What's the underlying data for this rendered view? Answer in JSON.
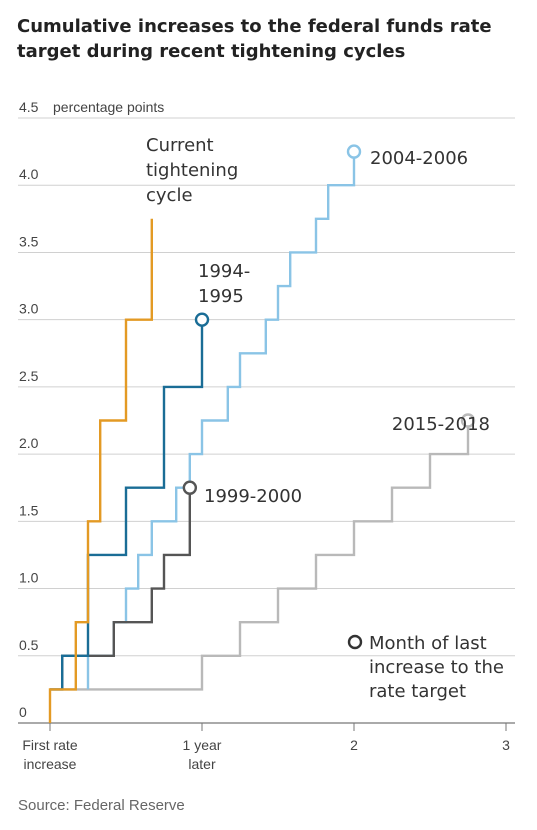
{
  "chart_data": {
    "type": "line",
    "step": true,
    "title": "Cumulative increases to the federal funds rate target during recent tightening cycles",
    "source": "Source: Federal Reserve",
    "y_unit_label": "percentage points",
    "ylim": [
      0,
      4.5
    ],
    "y_ticks": [
      "0",
      "0.5",
      "1.0",
      "1.5",
      "2.0",
      "2.5",
      "3.0",
      "3.5",
      "4.0",
      "4.5"
    ],
    "xlim": [
      0,
      3
    ],
    "x_ticks": [
      {
        "value": 0,
        "lines": [
          "First rate",
          "increase"
        ]
      },
      {
        "value": 1,
        "lines": [
          "1 year",
          "later"
        ]
      },
      {
        "value": 2,
        "lines": [
          "2"
        ]
      },
      {
        "value": 3,
        "lines": [
          "3"
        ]
      }
    ],
    "grid": true,
    "legend_text": [
      "Month of last",
      "increase to the",
      "rate target"
    ],
    "series": [
      {
        "name": "Current tightening cycle",
        "label_lines": [
          "Current",
          "tightening",
          "cycle"
        ],
        "color": "#e39a24",
        "end_marker": false,
        "points": [
          [
            0,
            0
          ],
          [
            0,
            0.25
          ],
          [
            0.17,
            0.25
          ],
          [
            0.17,
            0.75
          ],
          [
            0.25,
            0.75
          ],
          [
            0.25,
            1.5
          ],
          [
            0.33,
            1.5
          ],
          [
            0.33,
            2.25
          ],
          [
            0.5,
            2.25
          ],
          [
            0.5,
            3.0
          ],
          [
            0.67,
            3.0
          ],
          [
            0.67,
            3.75
          ]
        ]
      },
      {
        "name": "1994-1995",
        "label_lines": [
          "1994-",
          "1995"
        ],
        "color": "#1a6d96",
        "end_marker": true,
        "points": [
          [
            0,
            0.25
          ],
          [
            0.08,
            0.25
          ],
          [
            0.08,
            0.5
          ],
          [
            0.25,
            0.5
          ],
          [
            0.25,
            1.25
          ],
          [
            0.5,
            1.25
          ],
          [
            0.5,
            1.75
          ],
          [
            0.75,
            1.75
          ],
          [
            0.75,
            2.5
          ],
          [
            1.0,
            2.5
          ],
          [
            1.0,
            3.0
          ]
        ]
      },
      {
        "name": "2004-2006",
        "label_lines": [
          "2004-2006"
        ],
        "color": "#8ac4e6",
        "end_marker": true,
        "points": [
          [
            0.25,
            0.25
          ],
          [
            0.25,
            0.5
          ],
          [
            0.42,
            0.5
          ],
          [
            0.42,
            0.75
          ],
          [
            0.5,
            0.75
          ],
          [
            0.5,
            1.0
          ],
          [
            0.58,
            1.0
          ],
          [
            0.58,
            1.25
          ],
          [
            0.67,
            1.25
          ],
          [
            0.67,
            1.5
          ],
          [
            0.83,
            1.5
          ],
          [
            0.83,
            1.75
          ],
          [
            0.92,
            1.75
          ],
          [
            0.92,
            2.0
          ],
          [
            1.0,
            2.0
          ],
          [
            1.0,
            2.25
          ],
          [
            1.17,
            2.25
          ],
          [
            1.17,
            2.5
          ],
          [
            1.25,
            2.5
          ],
          [
            1.25,
            2.75
          ],
          [
            1.42,
            2.75
          ],
          [
            1.42,
            3.0
          ],
          [
            1.5,
            3.0
          ],
          [
            1.5,
            3.25
          ],
          [
            1.58,
            3.25
          ],
          [
            1.58,
            3.5
          ],
          [
            1.75,
            3.5
          ],
          [
            1.75,
            3.75
          ],
          [
            1.83,
            3.75
          ],
          [
            1.83,
            4.0
          ],
          [
            2.0,
            4.0
          ],
          [
            2.0,
            4.25
          ]
        ]
      },
      {
        "name": "1999-2000",
        "label_lines": [
          "1999-2000"
        ],
        "color": "#555555",
        "end_marker": true,
        "points": [
          [
            0.08,
            0.25
          ],
          [
            0.08,
            0.5
          ],
          [
            0.42,
            0.5
          ],
          [
            0.42,
            0.75
          ],
          [
            0.67,
            0.75
          ],
          [
            0.67,
            1.0
          ],
          [
            0.75,
            1.0
          ],
          [
            0.75,
            1.25
          ],
          [
            0.92,
            1.25
          ],
          [
            0.92,
            1.5
          ],
          [
            0.92,
            1.75
          ]
        ]
      },
      {
        "name": "2015-2018",
        "label_lines": [
          "2015-2018"
        ],
        "color": "#b9b9b9",
        "end_marker": true,
        "points": [
          [
            0,
            0.25
          ],
          [
            1.0,
            0.25
          ],
          [
            1.0,
            0.5
          ],
          [
            1.25,
            0.5
          ],
          [
            1.25,
            0.75
          ],
          [
            1.5,
            0.75
          ],
          [
            1.5,
            1.0
          ],
          [
            1.75,
            1.0
          ],
          [
            1.75,
            1.25
          ],
          [
            2.0,
            1.25
          ],
          [
            2.0,
            1.5
          ],
          [
            2.25,
            1.5
          ],
          [
            2.25,
            1.75
          ],
          [
            2.5,
            1.75
          ],
          [
            2.5,
            2.0
          ],
          [
            2.75,
            2.0
          ],
          [
            2.75,
            2.25
          ]
        ]
      }
    ]
  }
}
